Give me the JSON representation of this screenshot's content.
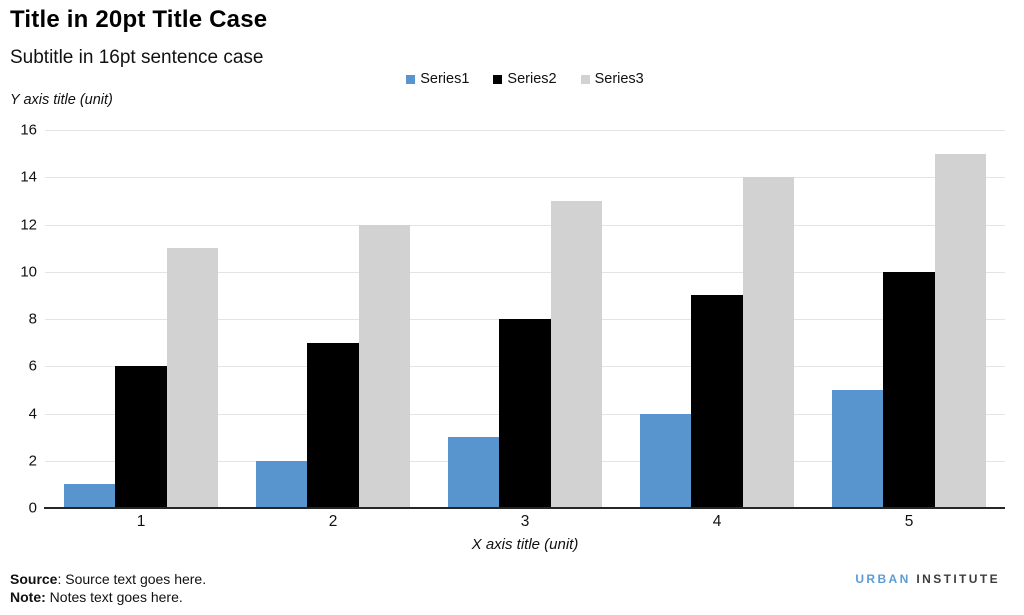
{
  "chart_data": {
    "type": "bar",
    "title": "Title in 20pt Title Case",
    "subtitle": "Subtitle in 16pt sentence case",
    "ylabel": "Y axis title (unit)",
    "xlabel": "X axis title (unit)",
    "categories": [
      "1",
      "2",
      "3",
      "4",
      "5"
    ],
    "series": [
      {
        "name": "Series1",
        "color": "#5894cd",
        "values": [
          1,
          2,
          3,
          4,
          5
        ]
      },
      {
        "name": "Series2",
        "color": "#000000",
        "values": [
          6,
          7,
          8,
          9,
          10
        ]
      },
      {
        "name": "Series3",
        "color": "#d2d2d2",
        "values": [
          11,
          12,
          13,
          14,
          15
        ]
      }
    ],
    "ylim": [
      0,
      16
    ],
    "yticks": [
      0,
      2,
      4,
      6,
      8,
      10,
      12,
      14,
      16
    ],
    "grid": true,
    "legend_position": "top-center"
  },
  "footer": {
    "source_label": "Source",
    "source_text": ": Source text goes here.",
    "note_label": "Note:",
    "note_text": " Notes text goes here."
  },
  "branding": {
    "urban": "URBAN",
    "institute": "INSTITUTE",
    "urban_color": "#5c9cd6",
    "institute_color": "#3d3d3d"
  }
}
